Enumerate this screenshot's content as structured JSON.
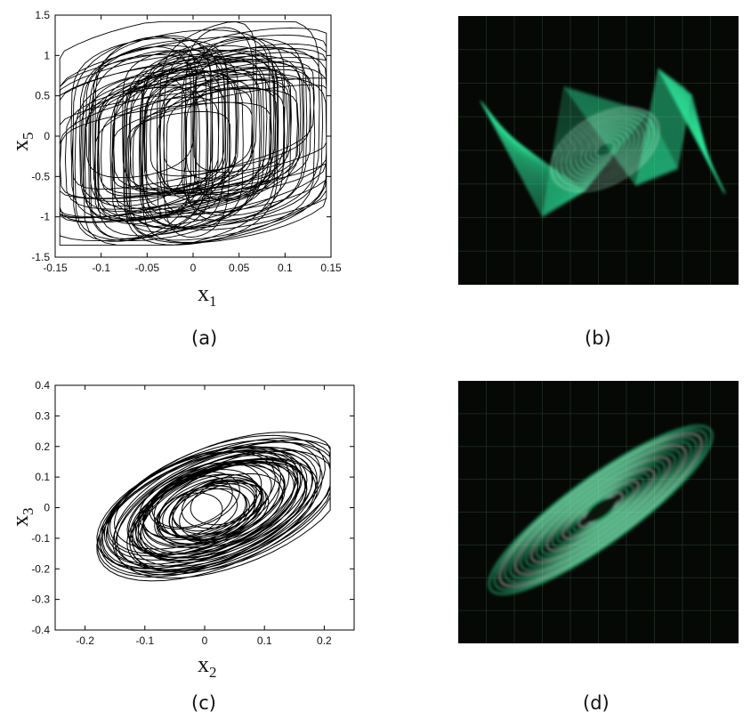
{
  "chart_data": [
    {
      "panel": "a",
      "type": "line",
      "description_visible": "phase portrait",
      "xlabel": "x_1",
      "ylabel": "x_5",
      "xlim": [
        -0.15,
        0.15
      ],
      "ylim": [
        -1.5,
        1.5
      ],
      "xticks": [
        "-0.15",
        "-0.1",
        "-0.05",
        "0",
        "0.05",
        "0.1",
        "0.15"
      ],
      "yticks": [
        "-1.5",
        "-1",
        "-0.5",
        "0",
        "0.5",
        "1",
        "1.5"
      ],
      "grid": false,
      "series": [
        {
          "color": "#000000"
        }
      ],
      "caption": "(a)"
    },
    {
      "panel": "b",
      "type": "scatter",
      "caption": "(b)",
      "trace_color": "#2ee89a"
    },
    {
      "panel": "c",
      "type": "line",
      "xlabel": "x_2",
      "ylabel": "x_3",
      "xlim": [
        -0.25,
        0.25
      ],
      "ylim": [
        -0.4,
        0.4
      ],
      "xticks": [
        "-0.2",
        "-0.1",
        "0",
        "0.1",
        "0.2"
      ],
      "yticks": [
        "-0.4",
        "-0.3",
        "-0.2",
        "-0.1",
        "0",
        "0.1",
        "0.2",
        "0.3",
        "0.4"
      ],
      "grid": false,
      "series": [
        {
          "color": "#000000"
        }
      ],
      "caption": "(c)"
    },
    {
      "panel": "d",
      "type": "scatter",
      "caption": "(d)",
      "trace_color": "#2ee89a"
    }
  ],
  "labels": {
    "a_x_main": "x",
    "a_x_sub": "1",
    "a_y_main": "x",
    "a_y_sub": "5",
    "c_x_main": "x",
    "c_x_sub": "2",
    "c_y_main": "x",
    "c_y_sub": "3"
  }
}
